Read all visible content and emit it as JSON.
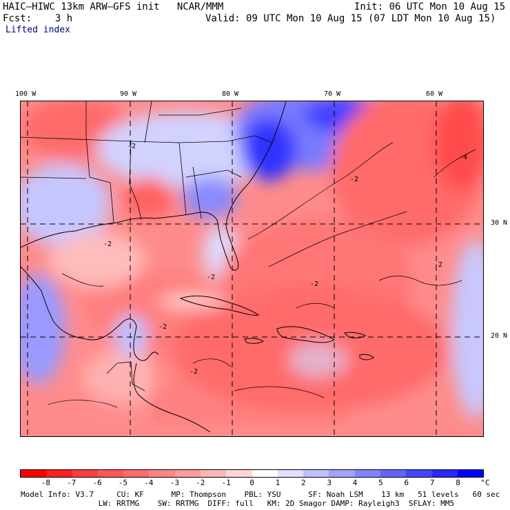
{
  "header": {
    "model": "HAIC—HIWC 13km ARW—GFS init   NCAR/MMM",
    "init": "Init: 06 UTC Mon 10 Aug 15",
    "fcst": "Fcst:    3 h",
    "valid": "Valid: 09 UTC Mon 10 Aug 15 (07 LDT Mon 10 Aug 15)",
    "field": "Lifted index"
  },
  "map": {
    "lon_labels": [
      "100 W",
      "90 W",
      "80 W",
      "70 W",
      "60 W"
    ],
    "lat_labels": [
      "30 N",
      "20 N"
    ],
    "contour_labels": [
      "-2",
      "-2",
      "-2",
      "-2",
      "-2",
      "-2",
      "-2",
      "-4",
      "-2"
    ]
  },
  "legend": {
    "ticks": [
      "-8",
      "-7",
      "-6",
      "-5",
      "-4",
      "-3",
      "-2",
      "-1",
      "0",
      "1",
      "2",
      "3",
      "4",
      "5",
      "6",
      "7",
      "8"
    ],
    "unit": "°C",
    "colors": [
      "#ff0000",
      "#ff2020",
      "#ff3f3f",
      "#ff5656",
      "#ff6c6c",
      "#ff8484",
      "#ff9c9c",
      "#ffb6b6",
      "#ffd6d6",
      "#ffffff",
      "#e0e0ff",
      "#c0c0ff",
      "#a2a2ff",
      "#8484ff",
      "#6464ff",
      "#4646ff",
      "#2828ff",
      "#0000ff"
    ]
  },
  "footer": {
    "line1": "Model Info: V3.7     CU: KF      MP: Thompson    PBL: YSU      SF: Noah LSM    13 km   51 levels   60 sec",
    "line2": "                 LW: RRTMG    SW: RRTMG  DIFF: full   KM: 2D Smagor DAMP: Rayleigh3  SFLAY: MM5"
  }
}
